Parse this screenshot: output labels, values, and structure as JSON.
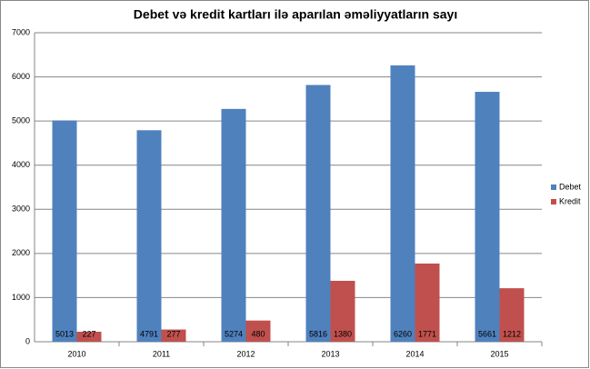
{
  "chart_data": {
    "type": "bar",
    "title": "Debet və kredit kartları ilə aparılan əməliyyatların sayı",
    "categories": [
      "2010",
      "2011",
      "2012",
      "2013",
      "2014",
      "2015"
    ],
    "series": [
      {
        "name": "Debet",
        "color": "#4f81bd",
        "values": [
          5013,
          4791,
          5274,
          5816,
          6260,
          5661
        ]
      },
      {
        "name": "Kredit",
        "color": "#c0504d",
        "values": [
          227,
          277,
          480,
          1380,
          1771,
          1212
        ]
      }
    ],
    "ylim": [
      0,
      7000
    ],
    "yticks": [
      0,
      1000,
      2000,
      3000,
      4000,
      5000,
      6000,
      7000
    ],
    "grid": true,
    "legend": "right",
    "data_labels": true
  }
}
